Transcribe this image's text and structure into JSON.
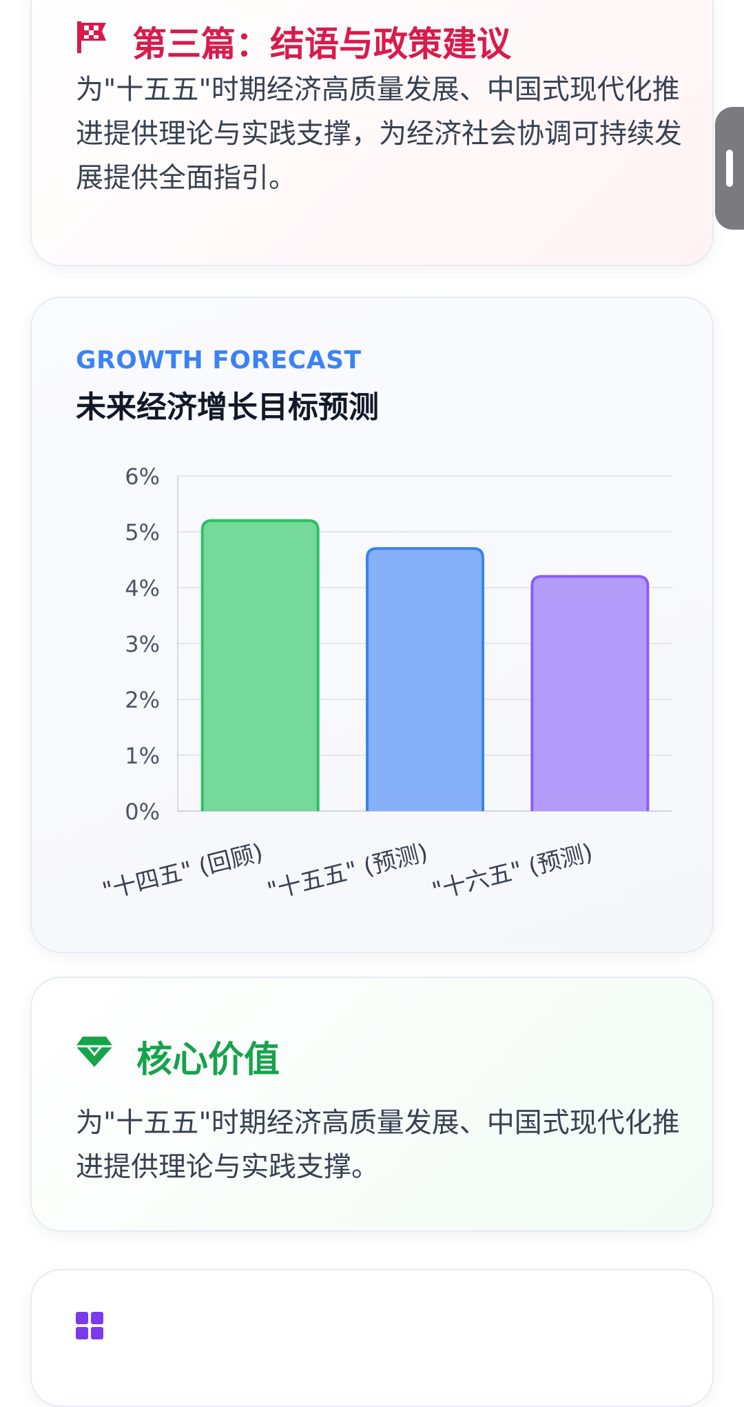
{
  "policy_card": {
    "title": "第三篇：结语与政策建议",
    "icon": "flag-icon",
    "text": "为\"十五五\"时期经济高质量发展、中国式现代化推进提供理论与实践支撑，为经济社会协调可持续发展提供全面指引。",
    "accent_color": "#d81b4b"
  },
  "forecast_card": {
    "eyebrow": "GROWTH FORECAST",
    "title": "未来经济增长目标预测"
  },
  "chart_data": {
    "type": "bar",
    "categories": [
      "\"十四五\" (回顾)",
      "\"十五五\" (预测)",
      "\"十六五\" (预测)"
    ],
    "series": [
      {
        "values": [
          5.2,
          4.7,
          4.2
        ]
      }
    ],
    "ylim": [
      0,
      6
    ],
    "yticks": [
      "0%",
      "1%",
      "2%",
      "3%",
      "4%",
      "5%",
      "6%"
    ],
    "grid": true,
    "bar_colors": [
      "#74d99a",
      "#86b0f7",
      "#b39cf9"
    ],
    "bar_border_colors": [
      "#2fbf63",
      "#3b82e6",
      "#8b5cf6"
    ]
  },
  "value_card": {
    "title": "核心价值",
    "icon": "gem-icon",
    "text": "为\"十五五\"时期经济高质量发展、中国式现代化推进提供理论与实践支撑。",
    "accent_color": "#16a34a"
  },
  "next_card": {
    "icon": "grid-icon",
    "accent_color": "#7c3aed"
  }
}
